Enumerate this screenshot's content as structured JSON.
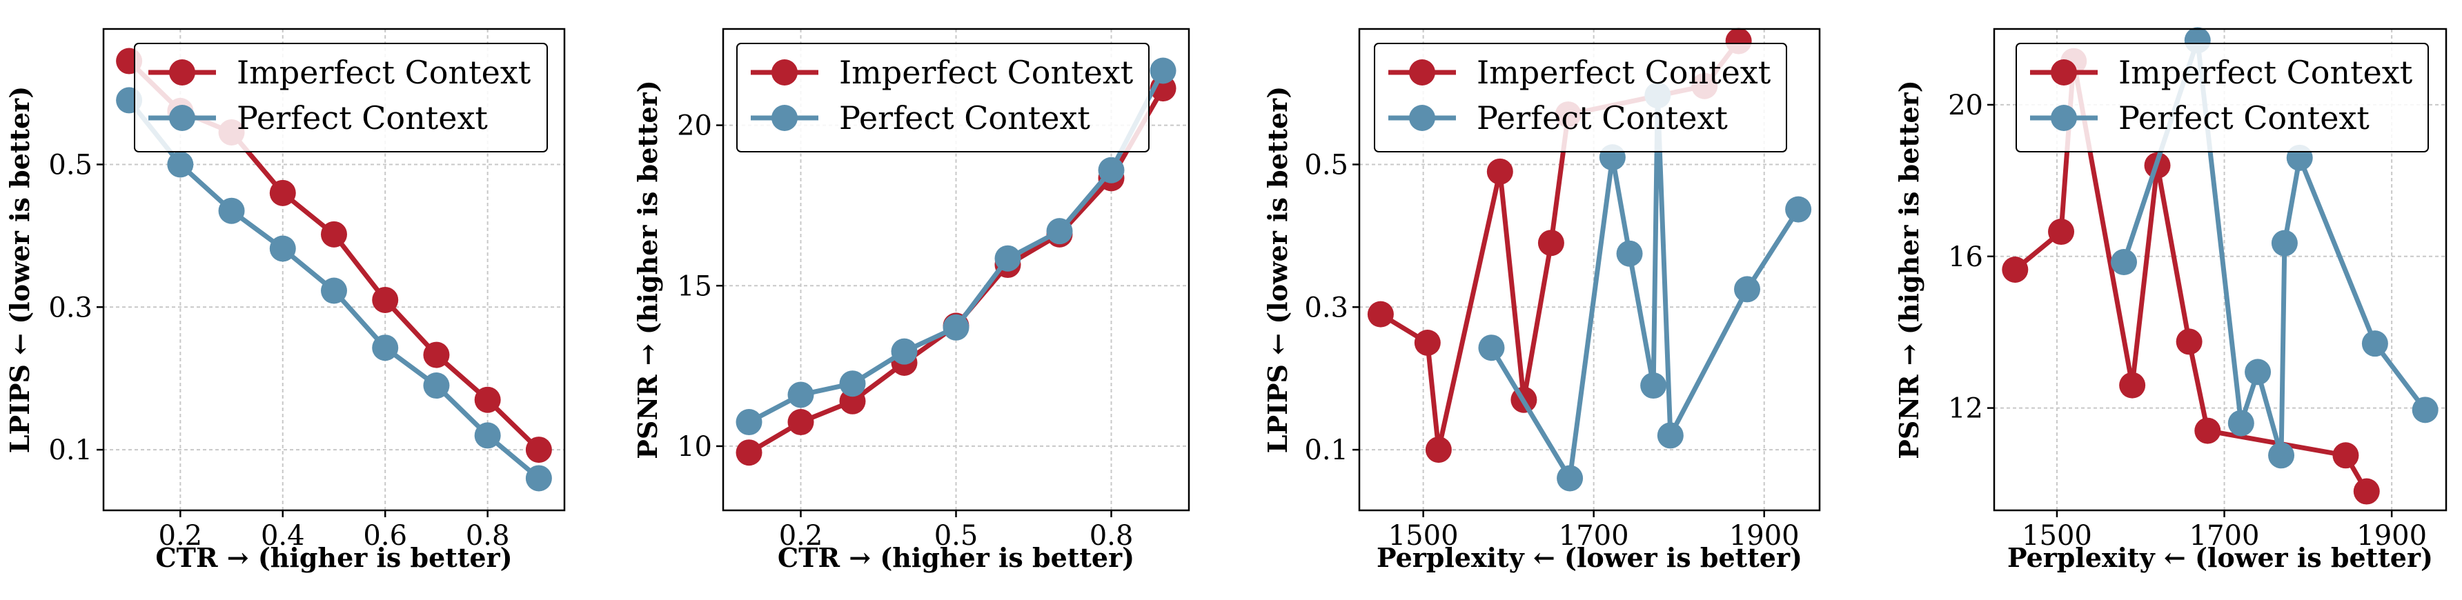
{
  "colors": {
    "imperfect": "#b5202e",
    "perfect": "#5b8fae",
    "grid": "#c8c8c8",
    "frame": "#000000"
  },
  "chart_data": [
    {
      "type": "line",
      "xlabel": "CTR → (higher is better)",
      "ylabel": "LPIPS ← (lower is better)",
      "xlim": [
        0.05,
        0.95
      ],
      "ylim": [
        0.015,
        0.69
      ],
      "xticks": [
        0.2,
        0.4,
        0.6,
        0.8
      ],
      "yticks": [
        0.1,
        0.3,
        0.5
      ],
      "xtick_labels": [
        "0.2",
        "0.4",
        "0.6",
        "0.8"
      ],
      "ytick_labels": [
        "0.1",
        "0.3",
        "0.5"
      ],
      "legend": "top-right",
      "series": [
        {
          "name": "Imperfect Context",
          "color": "#b5202e",
          "x": [
            0.1,
            0.2,
            0.3,
            0.4,
            0.5,
            0.6,
            0.7,
            0.8,
            0.9
          ],
          "y": [
            0.645,
            0.575,
            0.545,
            0.46,
            0.402,
            0.31,
            0.233,
            0.17,
            0.1
          ]
        },
        {
          "name": "Perfect Context",
          "color": "#5b8fae",
          "x": [
            0.1,
            0.2,
            0.3,
            0.4,
            0.5,
            0.6,
            0.7,
            0.8,
            0.9
          ],
          "y": [
            0.59,
            0.5,
            0.435,
            0.382,
            0.323,
            0.243,
            0.19,
            0.12,
            0.06
          ]
        }
      ]
    },
    {
      "type": "line",
      "xlabel": "CTR → (higher is better)",
      "ylabel": "PSNR → (higher is better)",
      "xlim": [
        0.05,
        0.95
      ],
      "ylim": [
        8.0,
        23.0
      ],
      "xticks": [
        0.2,
        0.5,
        0.8
      ],
      "yticks": [
        10,
        15,
        20
      ],
      "xtick_labels": [
        "0.2",
        "0.5",
        "0.8"
      ],
      "ytick_labels": [
        "10",
        "15",
        "20"
      ],
      "legend": "top-left",
      "series": [
        {
          "name": "Imperfect Context",
          "color": "#b5202e",
          "x": [
            0.1,
            0.2,
            0.3,
            0.4,
            0.5,
            0.6,
            0.7,
            0.8,
            0.9
          ],
          "y": [
            9.8,
            10.75,
            11.4,
            12.6,
            13.75,
            15.65,
            16.6,
            18.35,
            21.15
          ]
        },
        {
          "name": "Perfect Context",
          "color": "#5b8fae",
          "x": [
            0.1,
            0.2,
            0.3,
            0.4,
            0.5,
            0.6,
            0.7,
            0.8,
            0.9
          ],
          "y": [
            10.75,
            11.6,
            11.95,
            12.95,
            13.7,
            15.85,
            16.7,
            18.6,
            21.7
          ]
        }
      ]
    },
    {
      "type": "line",
      "xlabel": "Perplexity ← (lower is better)",
      "ylabel": "LPIPS ← (lower is better)",
      "xlim": [
        1425,
        1965
      ],
      "ylim": [
        0.015,
        0.69
      ],
      "xticks": [
        1500,
        1700,
        1900
      ],
      "yticks": [
        0.1,
        0.3,
        0.5
      ],
      "xtick_labels": [
        "1500",
        "1700",
        "1900"
      ],
      "ytick_labels": [
        "0.1",
        "0.3",
        "0.5"
      ],
      "legend": "top-left",
      "series": [
        {
          "name": "Imperfect Context",
          "color": "#b5202e",
          "x": [
            1450,
            1505,
            1518,
            1590,
            1618,
            1650,
            1670,
            1830,
            1870
          ],
          "y": [
            0.29,
            0.25,
            0.1,
            0.49,
            0.17,
            0.39,
            0.57,
            0.61,
            0.673
          ]
        },
        {
          "name": "Perfect Context",
          "color": "#5b8fae",
          "x": [
            1580,
            1672,
            1722,
            1742,
            1770,
            1775,
            1790,
            1880,
            1940
          ],
          "y": [
            0.243,
            0.06,
            0.51,
            0.375,
            0.19,
            0.597,
            0.12,
            0.325,
            0.437
          ]
        }
      ]
    },
    {
      "type": "line",
      "xlabel": "Perplexity ← (lower is better)",
      "ylabel": "PSNR → (higher is better)",
      "xlim": [
        1425,
        1965
      ],
      "ylim": [
        9.3,
        22.0
      ],
      "xticks": [
        1500,
        1700,
        1900
      ],
      "yticks": [
        12,
        16,
        20
      ],
      "xtick_labels": [
        "1500",
        "1700",
        "1900"
      ],
      "ytick_labels": [
        "12",
        "16",
        "20"
      ],
      "legend": "top-left",
      "series": [
        {
          "name": "Imperfect Context",
          "color": "#b5202e",
          "x": [
            1450,
            1505,
            1520,
            1590,
            1620,
            1658,
            1680,
            1845,
            1870
          ],
          "y": [
            15.65,
            16.65,
            21.15,
            12.6,
            18.4,
            13.75,
            11.4,
            10.75,
            9.8
          ]
        },
        {
          "name": "Perfect Context",
          "color": "#5b8fae",
          "x": [
            1580,
            1668,
            1720,
            1740,
            1768,
            1772,
            1790,
            1880,
            1940
          ],
          "y": [
            15.85,
            21.7,
            11.6,
            12.95,
            10.75,
            16.35,
            18.6,
            13.7,
            11.95
          ]
        }
      ]
    }
  ]
}
